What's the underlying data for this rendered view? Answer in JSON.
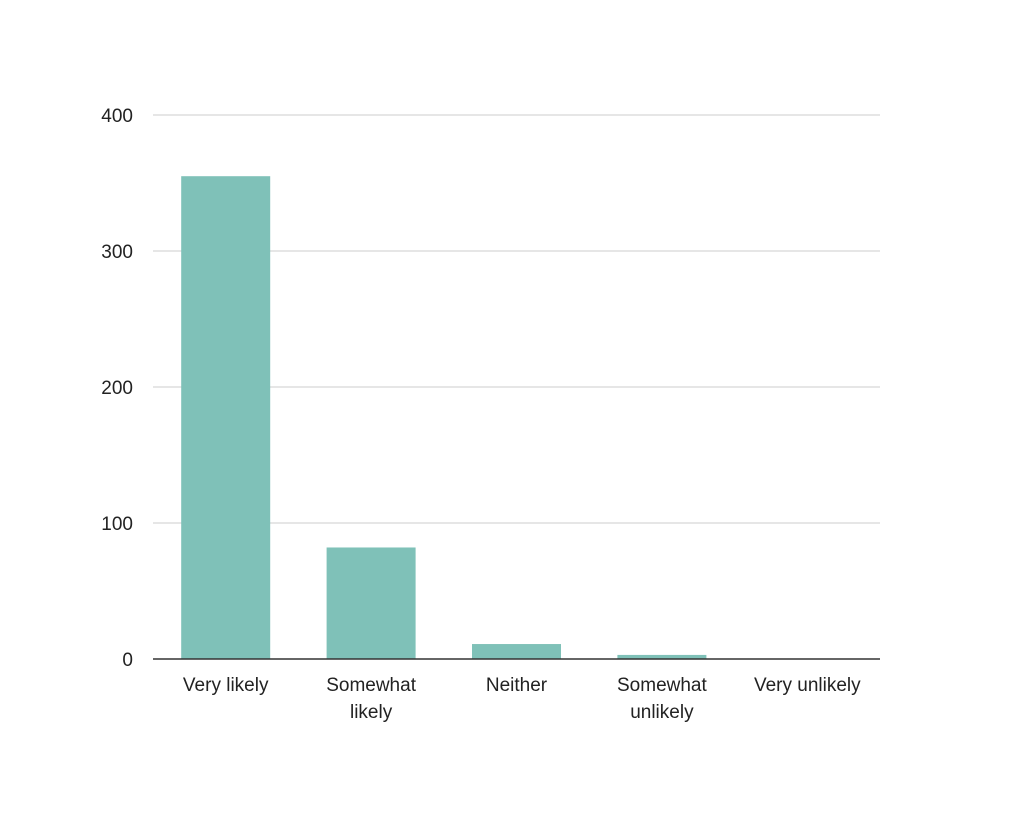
{
  "chart_data": {
    "type": "bar",
    "categories": [
      "Very likely",
      "Somewhat likely",
      "Neither",
      "Somewhat unlikely",
      "Very unlikely"
    ],
    "category_lines": [
      [
        "Very likely"
      ],
      [
        "Somewhat",
        "likely"
      ],
      [
        "Neither"
      ],
      [
        "Somewhat",
        "unlikely"
      ],
      [
        "Very unlikely"
      ]
    ],
    "values": [
      355,
      82,
      11,
      3,
      0
    ],
    "yticks": [
      0,
      100,
      200,
      300,
      400
    ],
    "ylim": [
      0,
      400
    ],
    "grid": true,
    "legend": "none"
  },
  "colors": {
    "bar": "#7fc1b8",
    "grid": "#cccccc",
    "axis": "#333333",
    "text": "#222222"
  }
}
